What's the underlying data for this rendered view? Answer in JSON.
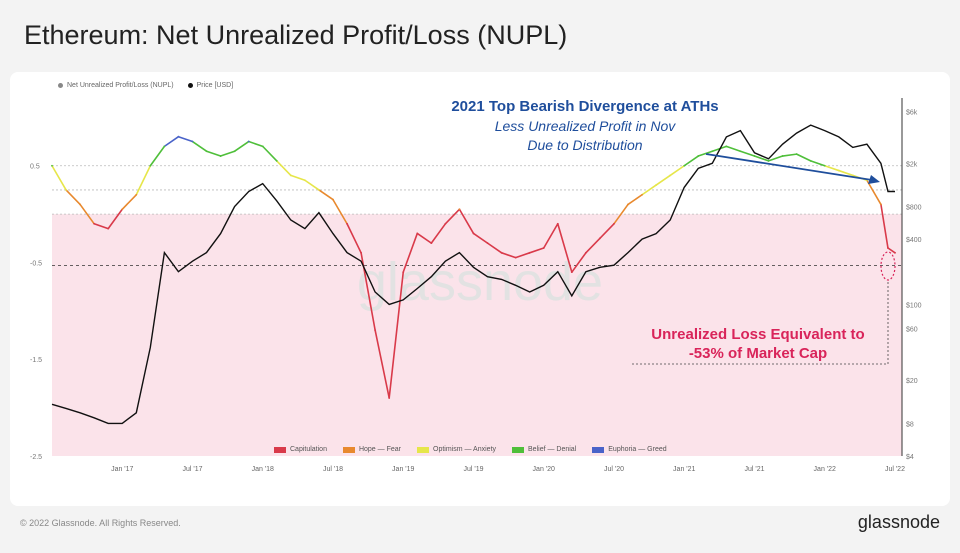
{
  "title": "Ethereum: Net Unrealized Profit/Loss (NUPL)",
  "footer": "© 2022 Glassnode. All Rights Reserved.",
  "brand": "glassnode",
  "legend_top": [
    {
      "label": "Net Unrealized Profit/Loss (NUPL)",
      "color": "#888888"
    },
    {
      "label": "Price [USD]",
      "color": "#111111"
    }
  ],
  "legend_bottom": [
    {
      "label": "Capitulation",
      "color": "#d93a4a"
    },
    {
      "label": "Hope — Fear",
      "color": "#e8892e"
    },
    {
      "label": "Optimism — Anxiety",
      "color": "#e6e64a"
    },
    {
      "label": "Belief — Denial",
      "color": "#4fbf3a"
    },
    {
      "label": "Euphoria — Greed",
      "color": "#4a63c9"
    }
  ],
  "annotations": {
    "divergence_title": "2021 Top Bearish Divergence at ATHs",
    "divergence_sub1": "Less Unrealized Profit in Nov",
    "divergence_sub2": "Due to Distribution",
    "loss_line1": "Unrealized Loss Equivalent to",
    "loss_line2": "-53% of Market Cap"
  },
  "watermark": "glassnode",
  "chart_data": {
    "type": "line",
    "x_ticks": [
      "Jan '17",
      "Jul '17",
      "Jan '18",
      "Jul '18",
      "Jan '19",
      "Jul '19",
      "Jan '20",
      "Jul '20",
      "Jan '21",
      "Jul '21",
      "Jan '22",
      "Jul '22"
    ],
    "y_left_ticks": [
      "0.5",
      "-0.5",
      "-1.5",
      "-2.5"
    ],
    "y_right_ticks": [
      "$6k",
      "$2k",
      "$800",
      "$400",
      "$100",
      "$60",
      "$20",
      "$8",
      "$4"
    ],
    "y_left_range": [
      -2.5,
      1.2
    ],
    "y_right_scale": "log",
    "reference_lines": [
      0.5,
      0.25,
      0,
      -0.53
    ],
    "capitulation_zone": [
      -2.5,
      0
    ],
    "series": [
      {
        "name": "Net Unrealized Profit/Loss (NUPL)",
        "axis": "left",
        "x": [
          2016.5,
          2016.6,
          2016.7,
          2016.8,
          2016.9,
          2017.0,
          2017.1,
          2017.2,
          2017.3,
          2017.4,
          2017.5,
          2017.6,
          2017.7,
          2017.8,
          2017.9,
          2018.0,
          2018.1,
          2018.2,
          2018.3,
          2018.4,
          2018.5,
          2018.6,
          2018.7,
          2018.8,
          2018.9,
          2019.0,
          2019.1,
          2019.2,
          2019.3,
          2019.4,
          2019.5,
          2019.6,
          2019.7,
          2019.8,
          2019.9,
          2020.0,
          2020.1,
          2020.2,
          2020.3,
          2020.4,
          2020.5,
          2020.6,
          2020.7,
          2020.8,
          2020.9,
          2021.0,
          2021.1,
          2021.2,
          2021.3,
          2021.4,
          2021.5,
          2021.6,
          2021.7,
          2021.8,
          2021.9,
          2022.0,
          2022.1,
          2022.2,
          2022.3,
          2022.4,
          2022.45,
          2022.5
        ],
        "values": [
          0.5,
          0.25,
          0.1,
          -0.1,
          -0.15,
          0.05,
          0.2,
          0.5,
          0.7,
          0.8,
          0.75,
          0.65,
          0.6,
          0.65,
          0.75,
          0.7,
          0.55,
          0.4,
          0.35,
          0.25,
          0.15,
          -0.1,
          -0.4,
          -1.2,
          -1.9,
          -0.6,
          -0.2,
          -0.3,
          -0.1,
          0.05,
          -0.2,
          -0.3,
          -0.4,
          -0.45,
          -0.4,
          -0.35,
          -0.1,
          -0.6,
          -0.4,
          -0.25,
          -0.1,
          0.1,
          0.2,
          0.3,
          0.4,
          0.5,
          0.6,
          0.65,
          0.7,
          0.65,
          0.6,
          0.55,
          0.6,
          0.62,
          0.55,
          0.5,
          0.45,
          0.4,
          0.35,
          0.1,
          -0.35,
          -0.4
        ]
      },
      {
        "name": "Price [USD]",
        "axis": "right",
        "x": [
          2016.5,
          2016.6,
          2016.7,
          2016.8,
          2016.9,
          2017.0,
          2017.1,
          2017.2,
          2017.3,
          2017.4,
          2017.5,
          2017.6,
          2017.7,
          2017.8,
          2017.9,
          2018.0,
          2018.1,
          2018.2,
          2018.3,
          2018.4,
          2018.5,
          2018.6,
          2018.7,
          2018.8,
          2018.9,
          2019.0,
          2019.1,
          2019.2,
          2019.3,
          2019.4,
          2019.5,
          2019.6,
          2019.7,
          2019.8,
          2019.9,
          2020.0,
          2020.1,
          2020.2,
          2020.3,
          2020.4,
          2020.5,
          2020.6,
          2020.7,
          2020.8,
          2020.9,
          2021.0,
          2021.1,
          2021.2,
          2021.3,
          2021.4,
          2021.5,
          2021.6,
          2021.7,
          2021.8,
          2021.9,
          2022.0,
          2022.1,
          2022.2,
          2022.3,
          2022.4,
          2022.45,
          2022.5
        ],
        "values": [
          12,
          11,
          10,
          9,
          8,
          8,
          10,
          40,
          300,
          200,
          250,
          300,
          450,
          800,
          1100,
          1300,
          900,
          600,
          500,
          700,
          450,
          300,
          250,
          130,
          100,
          110,
          140,
          180,
          250,
          300,
          220,
          180,
          170,
          150,
          130,
          150,
          200,
          120,
          200,
          220,
          230,
          300,
          400,
          450,
          600,
          1200,
          1800,
          2000,
          3500,
          4000,
          2500,
          2200,
          3000,
          3800,
          4500,
          4000,
          3500,
          2800,
          3000,
          2000,
          1100,
          1100
        ]
      }
    ]
  }
}
